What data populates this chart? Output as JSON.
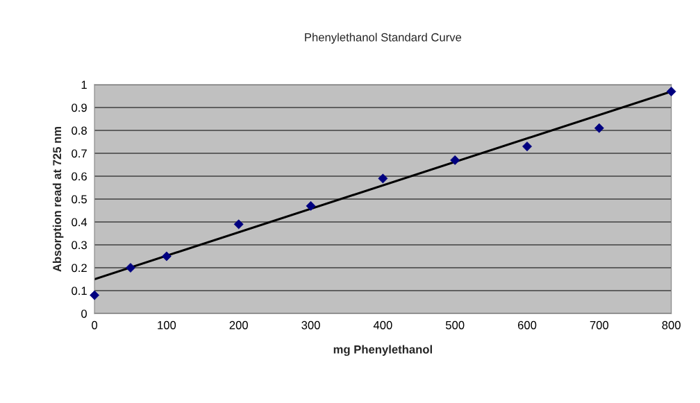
{
  "chart_data": {
    "type": "scatter",
    "title": "Phenylethanol Standard Curve",
    "xlabel": "mg Phenylethanol",
    "ylabel": "Absorption read at 725 nm",
    "series": [
      {
        "color": "#000080",
        "marker": "diamond",
        "x": [
          0,
          50,
          100,
          200,
          300,
          400,
          500,
          600,
          700,
          800
        ],
        "values": [
          0.08,
          0.2,
          0.25,
          0.39,
          0.47,
          0.59,
          0.67,
          0.73,
          0.81,
          0.97
        ]
      },
      {
        "type": "line",
        "color": "#000000",
        "marker": "none",
        "line_style": "solid",
        "x": [
          0,
          800
        ],
        "values": [
          0.15,
          0.97
        ]
      }
    ],
    "xlim": [
      0,
      800
    ],
    "xticks": [
      0,
      100,
      200,
      300,
      400,
      500,
      600,
      700,
      800
    ],
    "ylim": [
      0,
      1
    ],
    "yticks": [
      0,
      0.1,
      0.2,
      0.3,
      0.4,
      0.5,
      0.6,
      0.7,
      0.8,
      0.9,
      1
    ],
    "grid": "y",
    "legend": false
  }
}
